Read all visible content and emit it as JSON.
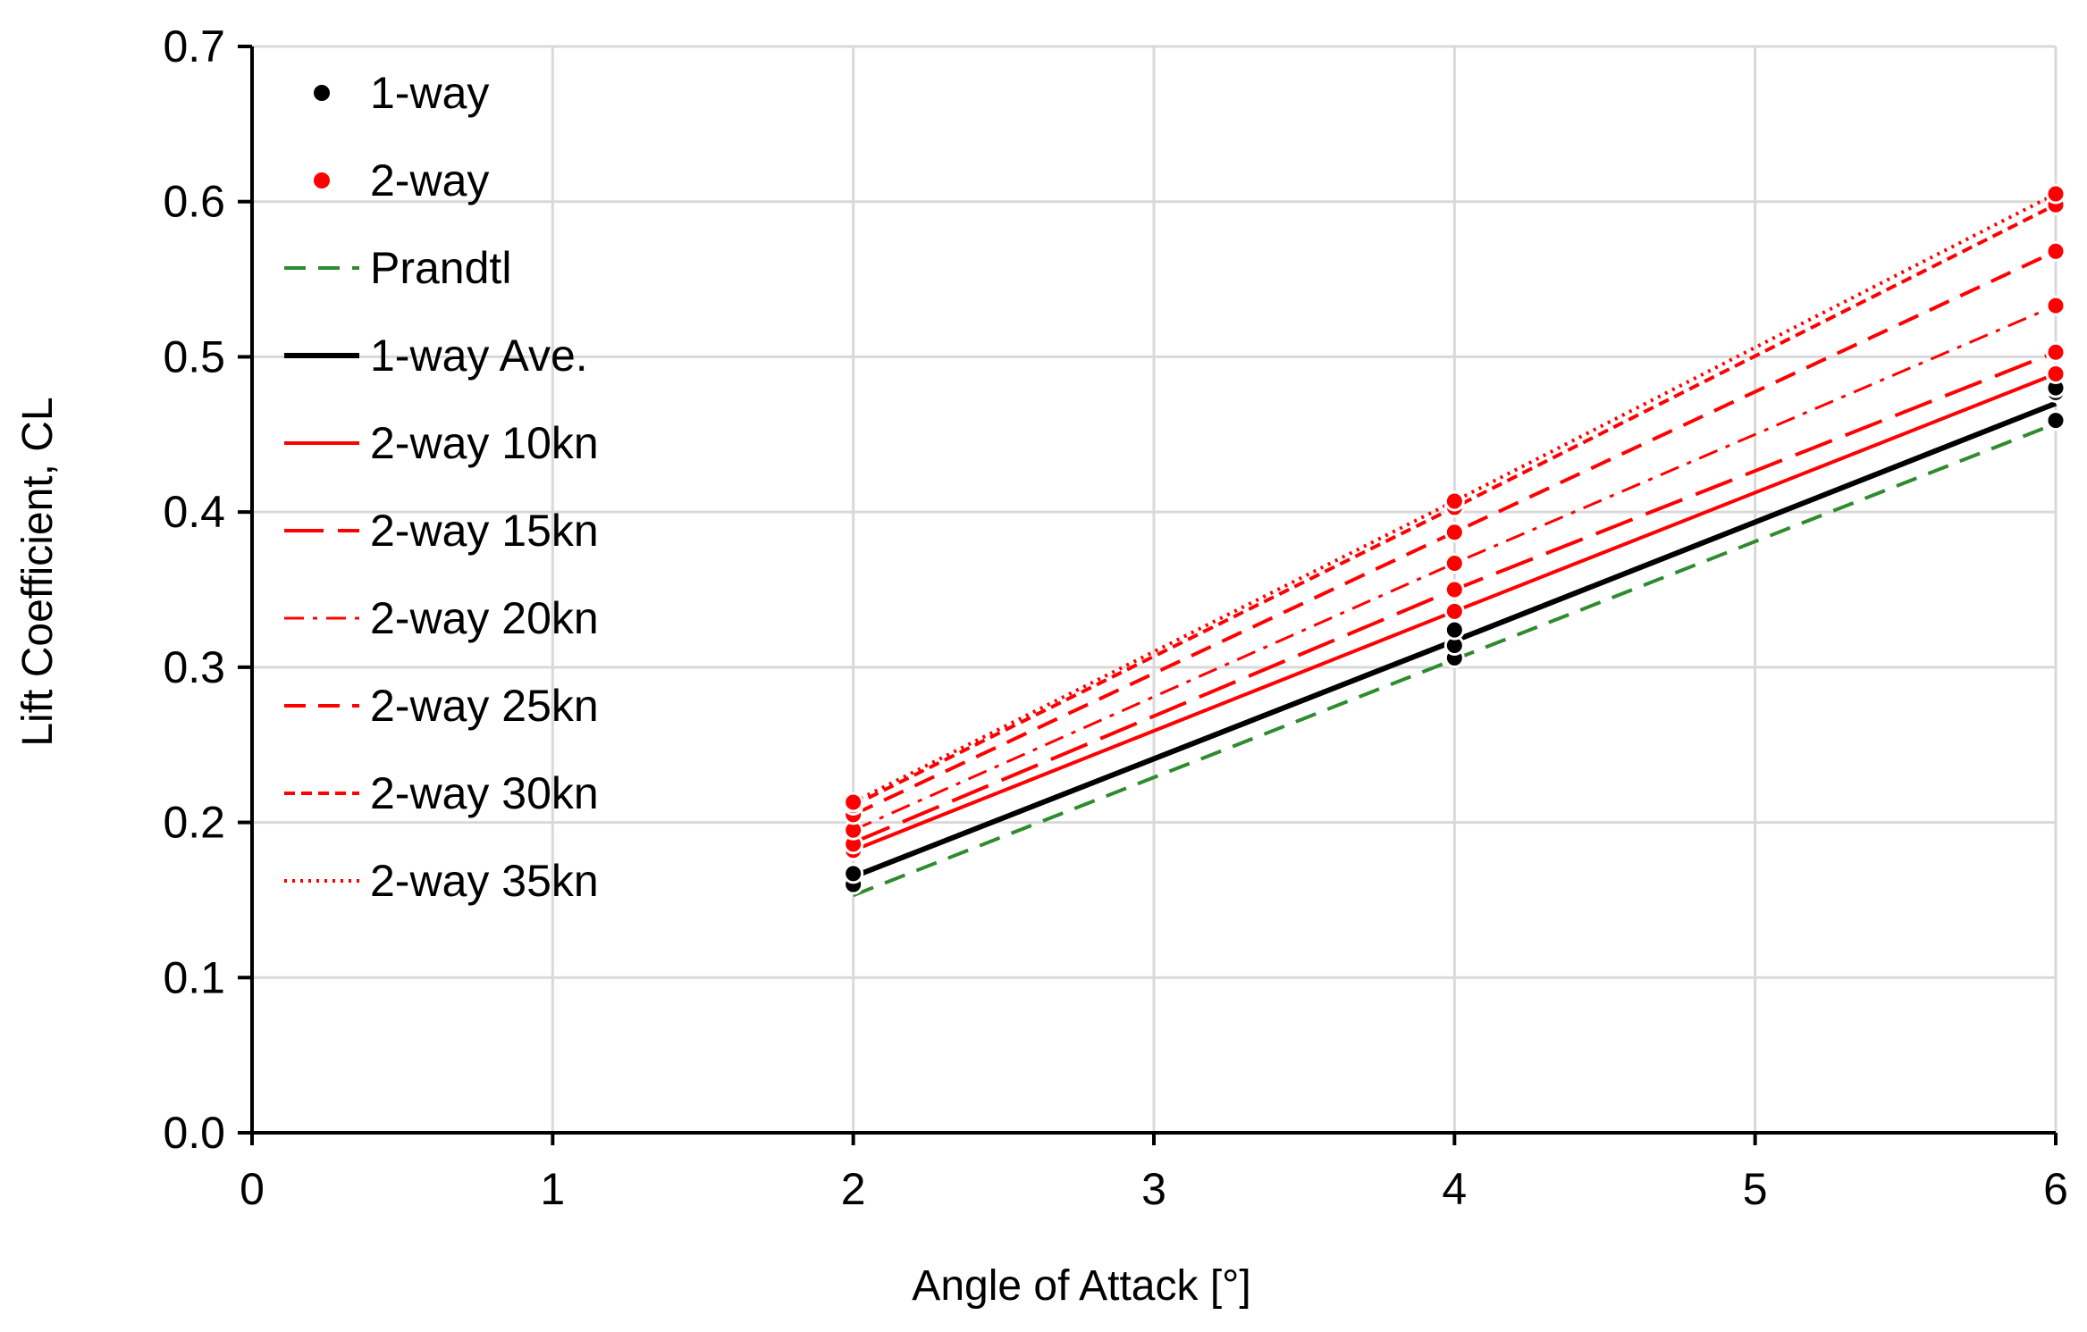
{
  "chart_data": {
    "type": "scatter",
    "xlabel": "Angle of Attack [°]",
    "ylabel": "Lift Coefficient, CL",
    "xlim": [
      0,
      6
    ],
    "ylim": [
      0,
      0.7
    ],
    "xticks": [
      0,
      1,
      2,
      3,
      4,
      5,
      6
    ],
    "yticks": [
      0.0,
      0.1,
      0.2,
      0.3,
      0.4,
      0.5,
      0.6,
      0.7
    ],
    "xtick_labels": [
      "0",
      "1",
      "2",
      "3",
      "4",
      "5",
      "6"
    ],
    "ytick_labels": [
      "0.0",
      "0.1",
      "0.2",
      "0.3",
      "0.4",
      "0.5",
      "0.6",
      "0.7"
    ],
    "grid": true,
    "legend_position": "top-left",
    "colors": {
      "black": "#000000",
      "red": "#ff0000",
      "green": "#2e8b2e",
      "grid": "#d9d9d9"
    },
    "series": [
      {
        "name": "1-way",
        "kind": "points",
        "color": "#000000",
        "points": [
          [
            2,
            0.16
          ],
          [
            2,
            0.167
          ],
          [
            4,
            0.306
          ],
          [
            4,
            0.314
          ],
          [
            4,
            0.324
          ],
          [
            6,
            0.459
          ],
          [
            6,
            0.477
          ],
          [
            6,
            0.48
          ]
        ]
      },
      {
        "name": "2-way",
        "kind": "points",
        "color": "#ff0000",
        "points": [
          [
            2,
            0.182
          ],
          [
            2,
            0.186
          ],
          [
            2,
            0.195
          ],
          [
            2,
            0.205
          ],
          [
            2,
            0.211
          ],
          [
            2,
            0.213
          ],
          [
            4,
            0.336
          ],
          [
            4,
            0.35
          ],
          [
            4,
            0.367
          ],
          [
            4,
            0.387
          ],
          [
            4,
            0.403
          ],
          [
            4,
            0.407
          ],
          [
            6,
            0.489
          ],
          [
            6,
            0.503
          ],
          [
            6,
            0.533
          ],
          [
            6,
            0.568
          ],
          [
            6,
            0.598
          ],
          [
            6,
            0.605
          ]
        ]
      },
      {
        "name": "Prandtl",
        "kind": "line",
        "style": "dash",
        "color": "#2e8b2e",
        "x": [
          2,
          4,
          6
        ],
        "y": [
          0.153,
          0.305,
          0.457
        ]
      },
      {
        "name": "1-way Ave.",
        "kind": "line",
        "style": "solid-thick",
        "color": "#000000",
        "x": [
          2,
          4,
          6
        ],
        "y": [
          0.165,
          0.317,
          0.47
        ]
      },
      {
        "name": "2-way 10kn",
        "kind": "line",
        "style": "solid",
        "color": "#ff0000",
        "x": [
          2,
          4,
          6
        ],
        "y": [
          0.182,
          0.336,
          0.489
        ]
      },
      {
        "name": "2-way 15kn",
        "kind": "line",
        "style": "long-dash",
        "color": "#ff0000",
        "x": [
          2,
          4,
          6
        ],
        "y": [
          0.187,
          0.35,
          0.503
        ]
      },
      {
        "name": "2-way 20kn",
        "kind": "line",
        "style": "dash-dot",
        "color": "#ff0000",
        "x": [
          2,
          4,
          6
        ],
        "y": [
          0.195,
          0.367,
          0.533
        ]
      },
      {
        "name": "2-way 25kn",
        "kind": "line",
        "style": "dash",
        "color": "#ff0000",
        "x": [
          2,
          4,
          6
        ],
        "y": [
          0.205,
          0.387,
          0.568
        ]
      },
      {
        "name": "2-way 30kn",
        "kind": "line",
        "style": "short-dash",
        "color": "#ff0000",
        "x": [
          2,
          4,
          6
        ],
        "y": [
          0.211,
          0.403,
          0.598
        ]
      },
      {
        "name": "2-way 35kn",
        "kind": "line",
        "style": "dot",
        "color": "#ff0000",
        "x": [
          2,
          4,
          6
        ],
        "y": [
          0.213,
          0.407,
          0.605
        ]
      }
    ]
  }
}
